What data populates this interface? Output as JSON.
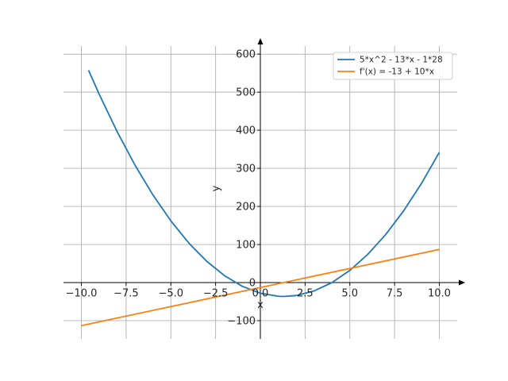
{
  "chart_data": {
    "type": "line",
    "xlabel": "x",
    "ylabel": "y",
    "xlim": [
      -11,
      11
    ],
    "ylim": [
      -148,
      642
    ],
    "xticks": [
      -10,
      -7.5,
      -5,
      -2.5,
      0,
      2.5,
      5,
      7.5,
      10
    ],
    "xtick_labels": [
      "−10.0",
      "−7.5",
      "−5.0",
      "−2.5",
      "0.0",
      "2.5",
      "5.0",
      "7.5",
      "10.0"
    ],
    "yticks": [
      -100,
      0,
      100,
      200,
      300,
      400,
      500,
      600
    ],
    "ytick_labels": [
      "−100",
      "0",
      "100",
      "200",
      "300",
      "400",
      "500",
      "600"
    ],
    "grid": true,
    "legend_position": "top-right",
    "series": [
      {
        "name": "5*x^2 - 13*x - 1*28",
        "color": "#1f77b4",
        "x": [
          -9.6,
          -9,
          -8,
          -7,
          -6,
          -5,
          -4,
          -3,
          -2,
          -1,
          0,
          1,
          1.3,
          2,
          3,
          4,
          5,
          6,
          7,
          8,
          9,
          10
        ],
        "y": [
          557.6,
          494,
          396,
          308,
          230,
          162,
          104,
          56,
          18,
          -10,
          -28,
          -36,
          -36.45,
          -34,
          -22,
          0,
          32,
          74,
          126,
          188,
          260,
          342
        ]
      },
      {
        "name": "f'(x) = -13 + 10*x",
        "color": "#ff7f0e",
        "x": [
          -10,
          10
        ],
        "y": [
          -113,
          87
        ]
      }
    ]
  }
}
